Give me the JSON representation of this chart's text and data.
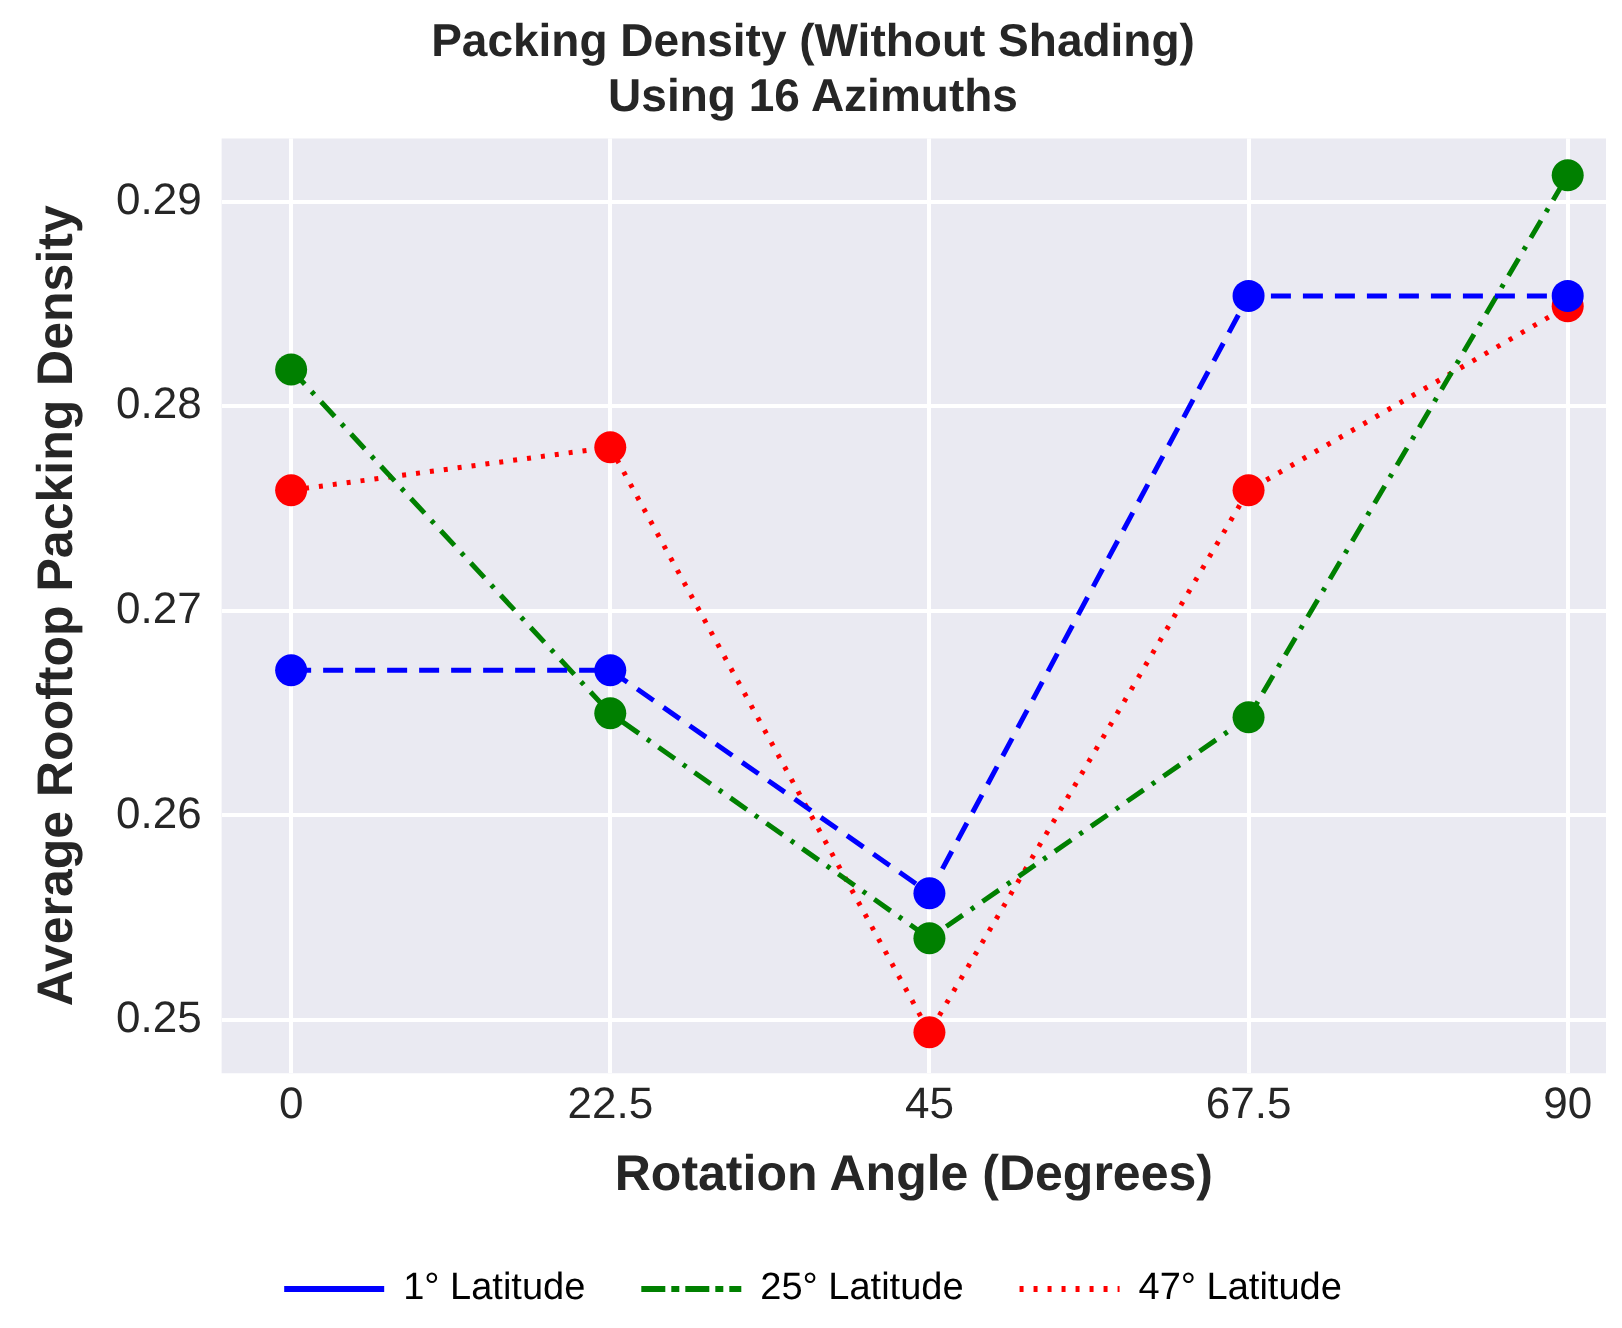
{
  "chart_data": {
    "type": "line",
    "title": "Packing Density (Without Shading)\nUsing 16 Azimuths",
    "xlabel": "Rotation Angle (Degrees)",
    "ylabel": "Average Rooftop Packing Density",
    "x": [
      0,
      22.5,
      45,
      67.5,
      90
    ],
    "series": [
      {
        "name": "1° Latitude",
        "color": "#0000ff",
        "line_style": "dashed",
        "values": [
          0.2671,
          0.2671,
          0.2562,
          0.2854,
          0.2854
        ]
      },
      {
        "name": "25° Latitude",
        "color": "#008000",
        "line_style": "dashdot",
        "values": [
          0.2818,
          0.265,
          0.254,
          0.2648,
          0.2913
        ]
      },
      {
        "name": "47° Latitude",
        "color": "#ff0000",
        "line_style": "dotted",
        "values": [
          0.2759,
          0.278,
          0.2494,
          0.2759,
          0.2849
        ]
      }
    ],
    "xlim": [
      -4.9,
      92.7
    ],
    "xticks": [
      0,
      22.5,
      45,
      67.5,
      90
    ],
    "ylim": [
      0.2474,
      0.2931
    ],
    "yticks": [
      0.25,
      0.26,
      0.27,
      0.28,
      0.29
    ],
    "grid": true,
    "legend": "bottom",
    "marker": "circle"
  }
}
